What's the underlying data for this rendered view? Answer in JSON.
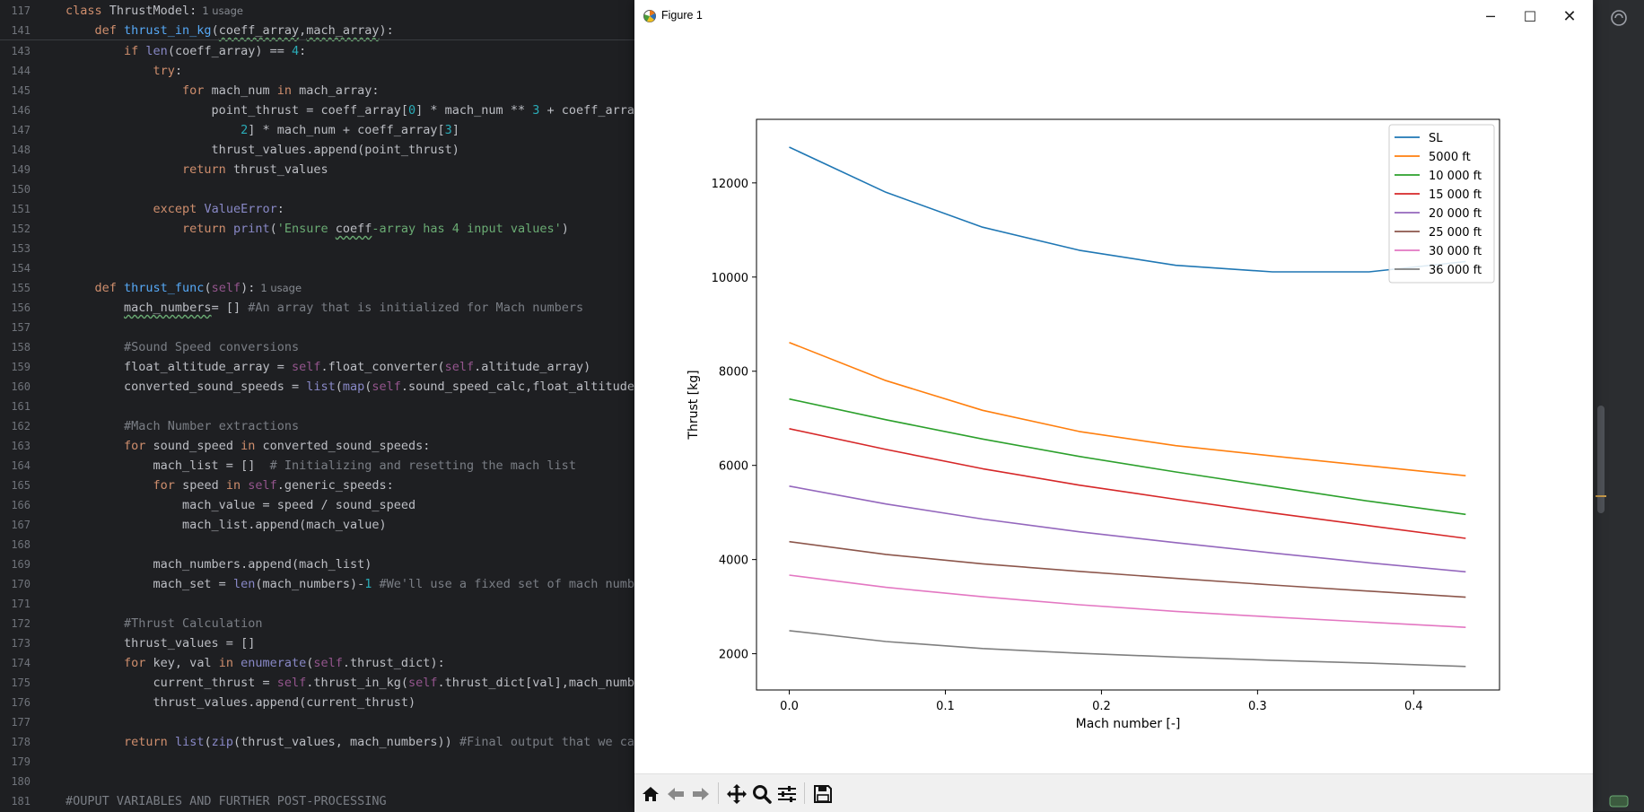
{
  "editor": {
    "sticky": [
      {
        "ln": "117",
        "tokens": [
          [
            "kw",
            "class "
          ],
          [
            "",
            "ThrustModel:"
          ],
          [
            "hint",
            "1 usage"
          ]
        ]
      },
      {
        "ln": "141",
        "tokens": [
          [
            "",
            "    "
          ],
          [
            "kw",
            "def "
          ],
          [
            "fn",
            "thrust_in_kg"
          ],
          [
            "",
            "("
          ],
          [
            "squig",
            "coeff_array"
          ],
          [
            "",
            ","
          ],
          [
            "squig",
            "mach_array"
          ],
          [
            "",
            "):"
          ]
        ]
      }
    ],
    "lines": [
      {
        "ln": "143",
        "tokens": [
          [
            "",
            "        "
          ],
          [
            "kw",
            "if "
          ],
          [
            "bi",
            "len"
          ],
          [
            "",
            "(coeff_array) == "
          ],
          [
            "nm",
            "4"
          ],
          [
            "",
            ":"
          ]
        ]
      },
      {
        "ln": "144",
        "tokens": [
          [
            "",
            "            "
          ],
          [
            "kw",
            "try"
          ],
          [
            "",
            ":"
          ]
        ]
      },
      {
        "ln": "145",
        "tokens": [
          [
            "",
            "                "
          ],
          [
            "kw",
            "for "
          ],
          [
            "",
            "mach_num "
          ],
          [
            "kw",
            "in "
          ],
          [
            "",
            "mach_array:"
          ]
        ]
      },
      {
        "ln": "146",
        "tokens": [
          [
            "",
            "                    point_thrust = coeff_array["
          ],
          [
            "nm",
            "0"
          ],
          [
            "",
            "] * mach_num ** "
          ],
          [
            "nm",
            "3"
          ],
          [
            "",
            " + coeff_array["
          ]
        ]
      },
      {
        "ln": "147",
        "tokens": [
          [
            "",
            "                        "
          ],
          [
            "nm",
            "2"
          ],
          [
            "",
            "] * mach_num + coeff_array["
          ],
          [
            "nm",
            "3"
          ],
          [
            "",
            "]"
          ]
        ]
      },
      {
        "ln": "148",
        "tokens": [
          [
            "",
            "                    thrust_values.append(point_thrust)"
          ]
        ]
      },
      {
        "ln": "149",
        "tokens": [
          [
            "",
            "                "
          ],
          [
            "kw",
            "return "
          ],
          [
            "",
            "thrust_values"
          ]
        ]
      },
      {
        "ln": "150",
        "tokens": []
      },
      {
        "ln": "151",
        "tokens": [
          [
            "",
            "            "
          ],
          [
            "kw",
            "except "
          ],
          [
            "bi",
            "ValueError"
          ],
          [
            "",
            ":"
          ]
        ]
      },
      {
        "ln": "152",
        "tokens": [
          [
            "",
            "                "
          ],
          [
            "kw",
            "return "
          ],
          [
            "bi",
            "print"
          ],
          [
            "",
            "("
          ],
          [
            "st",
            "'Ensure "
          ],
          [
            "squig",
            "coeff"
          ],
          [
            "st",
            "-array has 4 input values'"
          ],
          [
            "",
            ")"
          ]
        ]
      },
      {
        "ln": "153",
        "tokens": []
      },
      {
        "ln": "154",
        "tokens": []
      },
      {
        "ln": "155",
        "tokens": [
          [
            "",
            "    "
          ],
          [
            "kw",
            "def "
          ],
          [
            "fn",
            "thrust_func"
          ],
          [
            "",
            "("
          ],
          [
            "sf",
            "self"
          ],
          [
            "",
            "):"
          ],
          [
            "hint",
            "1 usage"
          ]
        ]
      },
      {
        "ln": "156",
        "tokens": [
          [
            "",
            "        "
          ],
          [
            "squig",
            "mach_numbers"
          ],
          [
            "",
            "= [] "
          ],
          [
            "cm",
            "#An array that is initialized for Mach numbers"
          ]
        ]
      },
      {
        "ln": "157",
        "tokens": []
      },
      {
        "ln": "158",
        "tokens": [
          [
            "",
            "        "
          ],
          [
            "cm",
            "#Sound Speed conversions"
          ]
        ]
      },
      {
        "ln": "159",
        "tokens": [
          [
            "",
            "        float_altitude_array = "
          ],
          [
            "sf",
            "self"
          ],
          [
            "",
            ".float_converter("
          ],
          [
            "sf",
            "self"
          ],
          [
            "",
            ".altitude_array)"
          ]
        ]
      },
      {
        "ln": "160",
        "tokens": [
          [
            "",
            "        converted_sound_speeds = "
          ],
          [
            "bi",
            "list"
          ],
          [
            "",
            "("
          ],
          [
            "bi",
            "map"
          ],
          [
            "",
            "("
          ],
          [
            "sf",
            "self"
          ],
          [
            "",
            ".sound_speed_calc,float_altitude_a"
          ]
        ]
      },
      {
        "ln": "161",
        "tokens": []
      },
      {
        "ln": "162",
        "tokens": [
          [
            "",
            "        "
          ],
          [
            "cm",
            "#Mach Number extractions"
          ]
        ]
      },
      {
        "ln": "163",
        "tokens": [
          [
            "",
            "        "
          ],
          [
            "kw",
            "for "
          ],
          [
            "",
            "sound_speed "
          ],
          [
            "kw",
            "in "
          ],
          [
            "",
            "converted_sound_speeds:"
          ]
        ]
      },
      {
        "ln": "164",
        "tokens": [
          [
            "",
            "            mach_list = []  "
          ],
          [
            "cm",
            "# Initializing and resetting the mach list"
          ]
        ]
      },
      {
        "ln": "165",
        "tokens": [
          [
            "",
            "            "
          ],
          [
            "kw",
            "for "
          ],
          [
            "",
            "speed "
          ],
          [
            "kw",
            "in "
          ],
          [
            "sf",
            "self"
          ],
          [
            "",
            ".generic_speeds:"
          ]
        ]
      },
      {
        "ln": "166",
        "tokens": [
          [
            "",
            "                mach_value = speed / sound_speed"
          ]
        ]
      },
      {
        "ln": "167",
        "tokens": [
          [
            "",
            "                mach_list.append(mach_value)"
          ]
        ]
      },
      {
        "ln": "168",
        "tokens": []
      },
      {
        "ln": "169",
        "tokens": [
          [
            "",
            "            mach_numbers.append(mach_list)"
          ]
        ]
      },
      {
        "ln": "170",
        "tokens": [
          [
            "",
            "            mach_set = "
          ],
          [
            "bi",
            "len"
          ],
          [
            "",
            "(mach_numbers)-"
          ],
          [
            "nm",
            "1"
          ],
          [
            "",
            " "
          ],
          [
            "cm",
            "#We'll use a fixed set of mach number"
          ]
        ]
      },
      {
        "ln": "171",
        "tokens": []
      },
      {
        "ln": "172",
        "tokens": [
          [
            "",
            "        "
          ],
          [
            "cm",
            "#Thrust Calculation"
          ]
        ]
      },
      {
        "ln": "173",
        "tokens": [
          [
            "",
            "        thrust_values = []"
          ]
        ]
      },
      {
        "ln": "174",
        "tokens": [
          [
            "",
            "        "
          ],
          [
            "kw",
            "for "
          ],
          [
            "",
            "key, val "
          ],
          [
            "kw",
            "in "
          ],
          [
            "bi",
            "enumerate"
          ],
          [
            "",
            "("
          ],
          [
            "sf",
            "self"
          ],
          [
            "",
            ".thrust_dict):"
          ]
        ]
      },
      {
        "ln": "175",
        "tokens": [
          [
            "",
            "            current_thrust = "
          ],
          [
            "sf",
            "self"
          ],
          [
            "",
            ".thrust_in_kg("
          ],
          [
            "sf",
            "self"
          ],
          [
            "",
            ".thrust_dict[val],mach_number"
          ]
        ]
      },
      {
        "ln": "176",
        "tokens": [
          [
            "",
            "            thrust_values.append(current_thrust)"
          ]
        ]
      },
      {
        "ln": "177",
        "tokens": []
      },
      {
        "ln": "178",
        "tokens": [
          [
            "",
            "        "
          ],
          [
            "kw",
            "return "
          ],
          [
            "bi",
            "list"
          ],
          [
            "",
            "("
          ],
          [
            "bi",
            "zip"
          ],
          [
            "",
            "(thrust_values, mach_numbers)) "
          ],
          [
            "cm",
            "#Final output that we care"
          ]
        ]
      },
      {
        "ln": "179",
        "tokens": []
      },
      {
        "ln": "180",
        "tokens": []
      },
      {
        "ln": "181",
        "tokens": [
          [
            "cm",
            "#OUPUT VARIABLES AND FURTHER POST-PROCESSING"
          ]
        ]
      }
    ]
  },
  "figure": {
    "title": "Figure 1",
    "controls": {
      "minimize": "─",
      "maximize": "☐",
      "close": "✕"
    },
    "toolbar": [
      "home-icon",
      "back-icon",
      "forward-icon",
      "pan-icon",
      "zoom-icon",
      "configure-icon",
      "save-icon"
    ]
  },
  "chart_data": {
    "type": "line",
    "title": "",
    "xlabel": "Mach number [-]",
    "ylabel": "Thrust [kg]",
    "xlim": [
      -0.021,
      0.455
    ],
    "ylim": [
      1230,
      13350
    ],
    "xticks": [
      0.0,
      0.1,
      0.2,
      0.3,
      0.4
    ],
    "yticks": [
      2000,
      4000,
      6000,
      8000,
      10000,
      12000
    ],
    "grid": false,
    "legend": "top-right",
    "x": [
      0.0,
      0.0619,
      0.1238,
      0.1857,
      0.2476,
      0.3095,
      0.3714,
      0.4333
    ],
    "series": [
      {
        "name": "SL",
        "color": "#1f77b4",
        "values": [
          12760,
          11800,
          11060,
          10570,
          10250,
          10110,
          10110,
          10330
        ]
      },
      {
        "name": "5000 ft",
        "color": "#ff7f0e",
        "values": [
          8610,
          7800,
          7170,
          6720,
          6420,
          6200,
          5990,
          5780
        ]
      },
      {
        "name": "10 000 ft",
        "color": "#2ca02c",
        "values": [
          7410,
          6970,
          6560,
          6190,
          5860,
          5550,
          5240,
          4960
        ]
      },
      {
        "name": "15 000 ft",
        "color": "#d62728",
        "values": [
          6780,
          6340,
          5930,
          5580,
          5280,
          4990,
          4720,
          4450
        ]
      },
      {
        "name": "20 000 ft",
        "color": "#9467bd",
        "values": [
          5560,
          5180,
          4860,
          4590,
          4360,
          4140,
          3930,
          3740
        ]
      },
      {
        "name": "25 000 ft",
        "color": "#8c564b",
        "values": [
          4380,
          4110,
          3910,
          3750,
          3600,
          3460,
          3330,
          3200
        ]
      },
      {
        "name": "30 000 ft",
        "color": "#e377c2",
        "values": [
          3670,
          3410,
          3210,
          3040,
          2900,
          2780,
          2670,
          2560
        ]
      },
      {
        "name": "36 000 ft",
        "color": "#7f7f7f",
        "values": [
          2490,
          2260,
          2110,
          2010,
          1930,
          1860,
          1800,
          1730
        ]
      }
    ]
  }
}
